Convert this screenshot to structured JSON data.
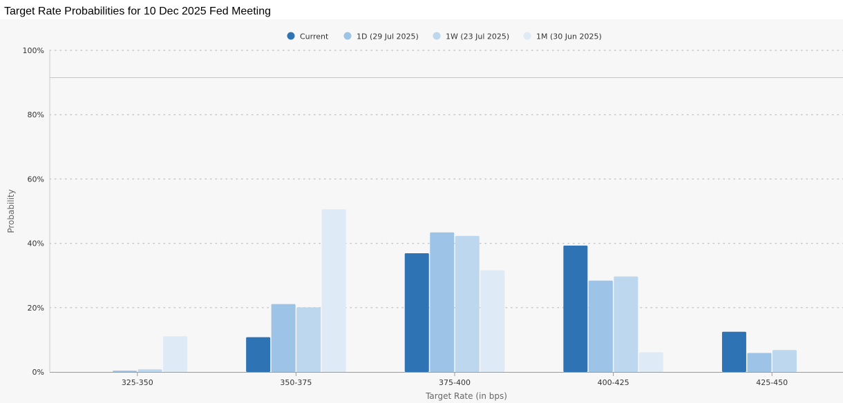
{
  "chart_data": {
    "type": "bar",
    "title": "Target Rate Probabilities for 10 Dec 2025 Fed Meeting",
    "xlabel": "Target Rate (in bps)",
    "ylabel": "Probability",
    "categories": [
      "325-350",
      "350-375",
      "375-400",
      "400-425",
      "425-450"
    ],
    "ylim": [
      0,
      100
    ],
    "yticks": [
      "0%",
      "20%",
      "40%",
      "60%",
      "80%",
      "100%"
    ],
    "grid": true,
    "legend_position": "top-center",
    "series": [
      {
        "name": "Current",
        "color": "#2e74b5",
        "values": [
          0.0,
          10.8,
          36.9,
          39.3,
          12.5
        ]
      },
      {
        "name": "1D (29 Jul 2025)",
        "color": "#9dc3e6",
        "values": [
          0.4,
          21.1,
          43.4,
          28.4,
          5.9
        ]
      },
      {
        "name": "1W (23 Jul 2025)",
        "color": "#bdd7ee",
        "values": [
          0.8,
          20.1,
          42.3,
          29.7,
          6.8
        ]
      },
      {
        "name": "1M (30 Jun 2025)",
        "color": "#deebf7",
        "values": [
          11.1,
          50.6,
          31.6,
          6.1,
          0.0
        ]
      }
    ]
  }
}
